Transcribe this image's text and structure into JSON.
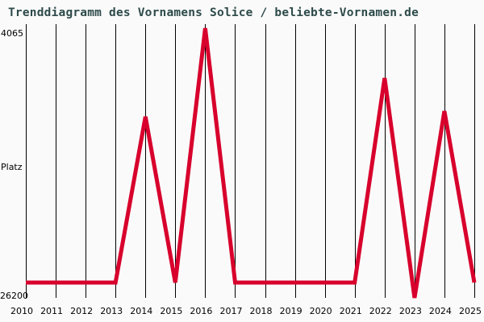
{
  "chart_data": {
    "type": "line",
    "title": "Trenddiagramm des Vornamens Solice / beliebte-Vornamen.de",
    "xlabel": "",
    "ylabel": "Platz",
    "x": [
      2010,
      2011,
      2012,
      2013,
      2014,
      2015,
      2016,
      2017,
      2018,
      2019,
      2020,
      2021,
      2022,
      2023,
      2024,
      2025
    ],
    "series": [
      {
        "name": "Solice",
        "values": [
          24944,
          24944,
          24944,
          24944,
          11333,
          24944,
          4065,
          24944,
          24944,
          24944,
          24944,
          24944,
          8162,
          26200,
          10870,
          24944
        ]
      }
    ],
    "ylim": [
      4065,
      26200
    ],
    "y_inverted": true,
    "y_tick_labels": [
      "4065",
      "26200"
    ],
    "x_tick_labels": [
      "2010",
      "2011",
      "2012",
      "2013",
      "2014",
      "2015",
      "2016",
      "2017",
      "2018",
      "2019",
      "2020",
      "2021",
      "2022",
      "2023",
      "2024",
      "2025"
    ],
    "grid": "vertical",
    "line_color": "#d8002c",
    "legend": null
  },
  "labels": {
    "title": "Trenddiagramm des Vornamens Solice / beliebte-Vornamen.de",
    "y_top": "4065",
    "y_bottom": "26200",
    "y_axis": "Platz",
    "years": [
      "2010",
      "2011",
      "2012",
      "2013",
      "2014",
      "2015",
      "2016",
      "2017",
      "2018",
      "2019",
      "2020",
      "2021",
      "2022",
      "2023",
      "2024",
      "2025"
    ]
  }
}
